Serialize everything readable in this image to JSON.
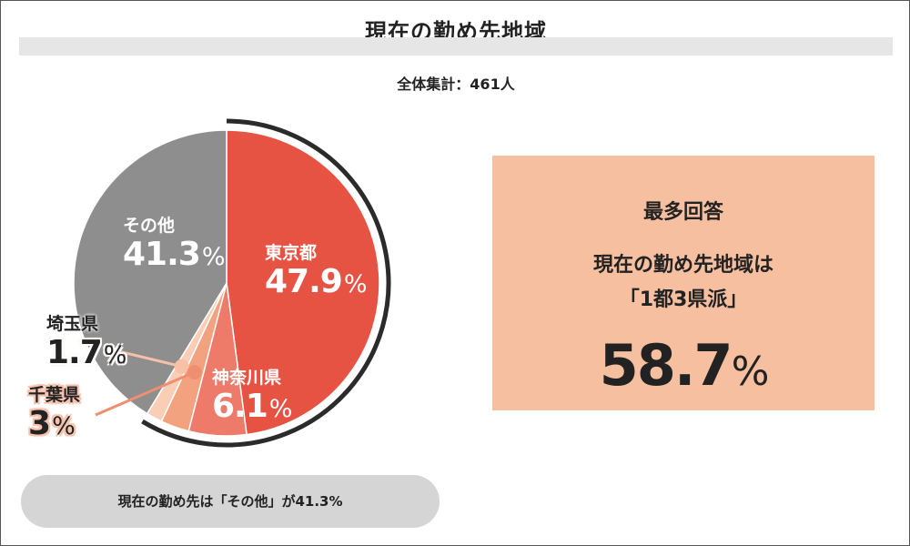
{
  "title": "現在の勤め先地域",
  "total_label": "全体集計：461人",
  "chart_data": {
    "type": "pie",
    "total_respondents": 461,
    "slices": [
      {
        "name": "東京都",
        "value": 47.9,
        "color": "#e65343"
      },
      {
        "name": "神奈川県",
        "value": 6.1,
        "color": "#ee7a6a"
      },
      {
        "name": "千葉県",
        "value": 3.0,
        "color": "#f2a27e"
      },
      {
        "name": "埼玉県",
        "value": 1.7,
        "color": "#f9cdb6"
      },
      {
        "name": "その他",
        "value": 41.3,
        "color": "#8e8e8e"
      }
    ],
    "value_suffix": "%",
    "highlight_arc": "1都3県 (東京都・神奈川県・千葉県・埼玉県)"
  },
  "summary_box": {
    "heading": "最多回答",
    "line1": "現在の勤め先地域は",
    "line2": "「1都3県派」",
    "value": "58.7",
    "suffix": "%",
    "background": "#f5bfa0"
  },
  "footer_note": "現在の勤め先は「その他」が41.3%"
}
